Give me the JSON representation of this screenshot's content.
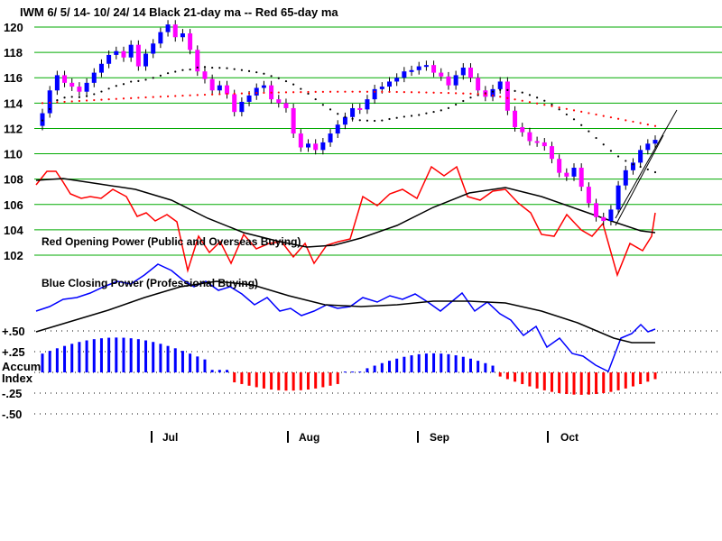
{
  "chart_data": {
    "type": "line",
    "title": "IWM    6/ 5/ 14- 10/ 24/ 14     Black 21-day ma --   Red 65-day ma",
    "price_axis": {
      "ticks": [
        "120",
        "118",
        "116",
        "114",
        "112",
        "110",
        "108",
        "106",
        "104",
        "102"
      ],
      "ylim": [
        101,
        121
      ]
    },
    "indicator_axis": {
      "ticks": [
        "+.50",
        "+.25",
        "-.25",
        "-.50"
      ],
      "ylim": [
        -0.55,
        0.55
      ]
    },
    "accum_label_1": "Accum",
    "accum_label_2": "Index",
    "panel_labels": {
      "red_opening": "Red Opening Power (Public and Overseas Buying)",
      "blue_closing": "Blue Closing Power (Professional Buying)"
    },
    "months": [
      "Jul",
      "Aug",
      "Sep",
      "Oct"
    ],
    "colors": {
      "up_candle": "#0000ff",
      "down_candle": "#ff00ff",
      "red_line": "#ff0000",
      "blue_line": "#0000ff",
      "ma21": "#000000",
      "ma65": "#ff0000",
      "grid": "#00aa00",
      "accum_pos": "#0000ff",
      "accum_neg": "#ff0000"
    },
    "price_candles_close": [
      113.2,
      115.0,
      116.2,
      115.6,
      115.3,
      114.9,
      115.6,
      116.4,
      117.1,
      117.8,
      118.1,
      117.6,
      118.6,
      116.9,
      117.9,
      118.7,
      119.6,
      120.2,
      119.2,
      119.5,
      118.2,
      116.5,
      115.9,
      115.0,
      115.4,
      114.7,
      113.3,
      114.1,
      114.6,
      115.2,
      115.4,
      114.3,
      114.0,
      113.6,
      111.6,
      110.5,
      110.8,
      110.3,
      110.9,
      111.6,
      112.3,
      112.9,
      113.6,
      113.5,
      114.3,
      115.1,
      115.3,
      115.7,
      116.0,
      116.5,
      116.6,
      116.9,
      117.0,
      116.4,
      116.1,
      115.4,
      116.2,
      116.8,
      116.0,
      115.0,
      114.5,
      115.1,
      115.7,
      113.4,
      112.1,
      111.7,
      111.0,
      110.9,
      110.6,
      109.6,
      108.5,
      108.2,
      108.9,
      107.4,
      106.1,
      105.0,
      104.7,
      105.6,
      107.5,
      108.7,
      109.3,
      110.3,
      110.8,
      111.1
    ]
  }
}
